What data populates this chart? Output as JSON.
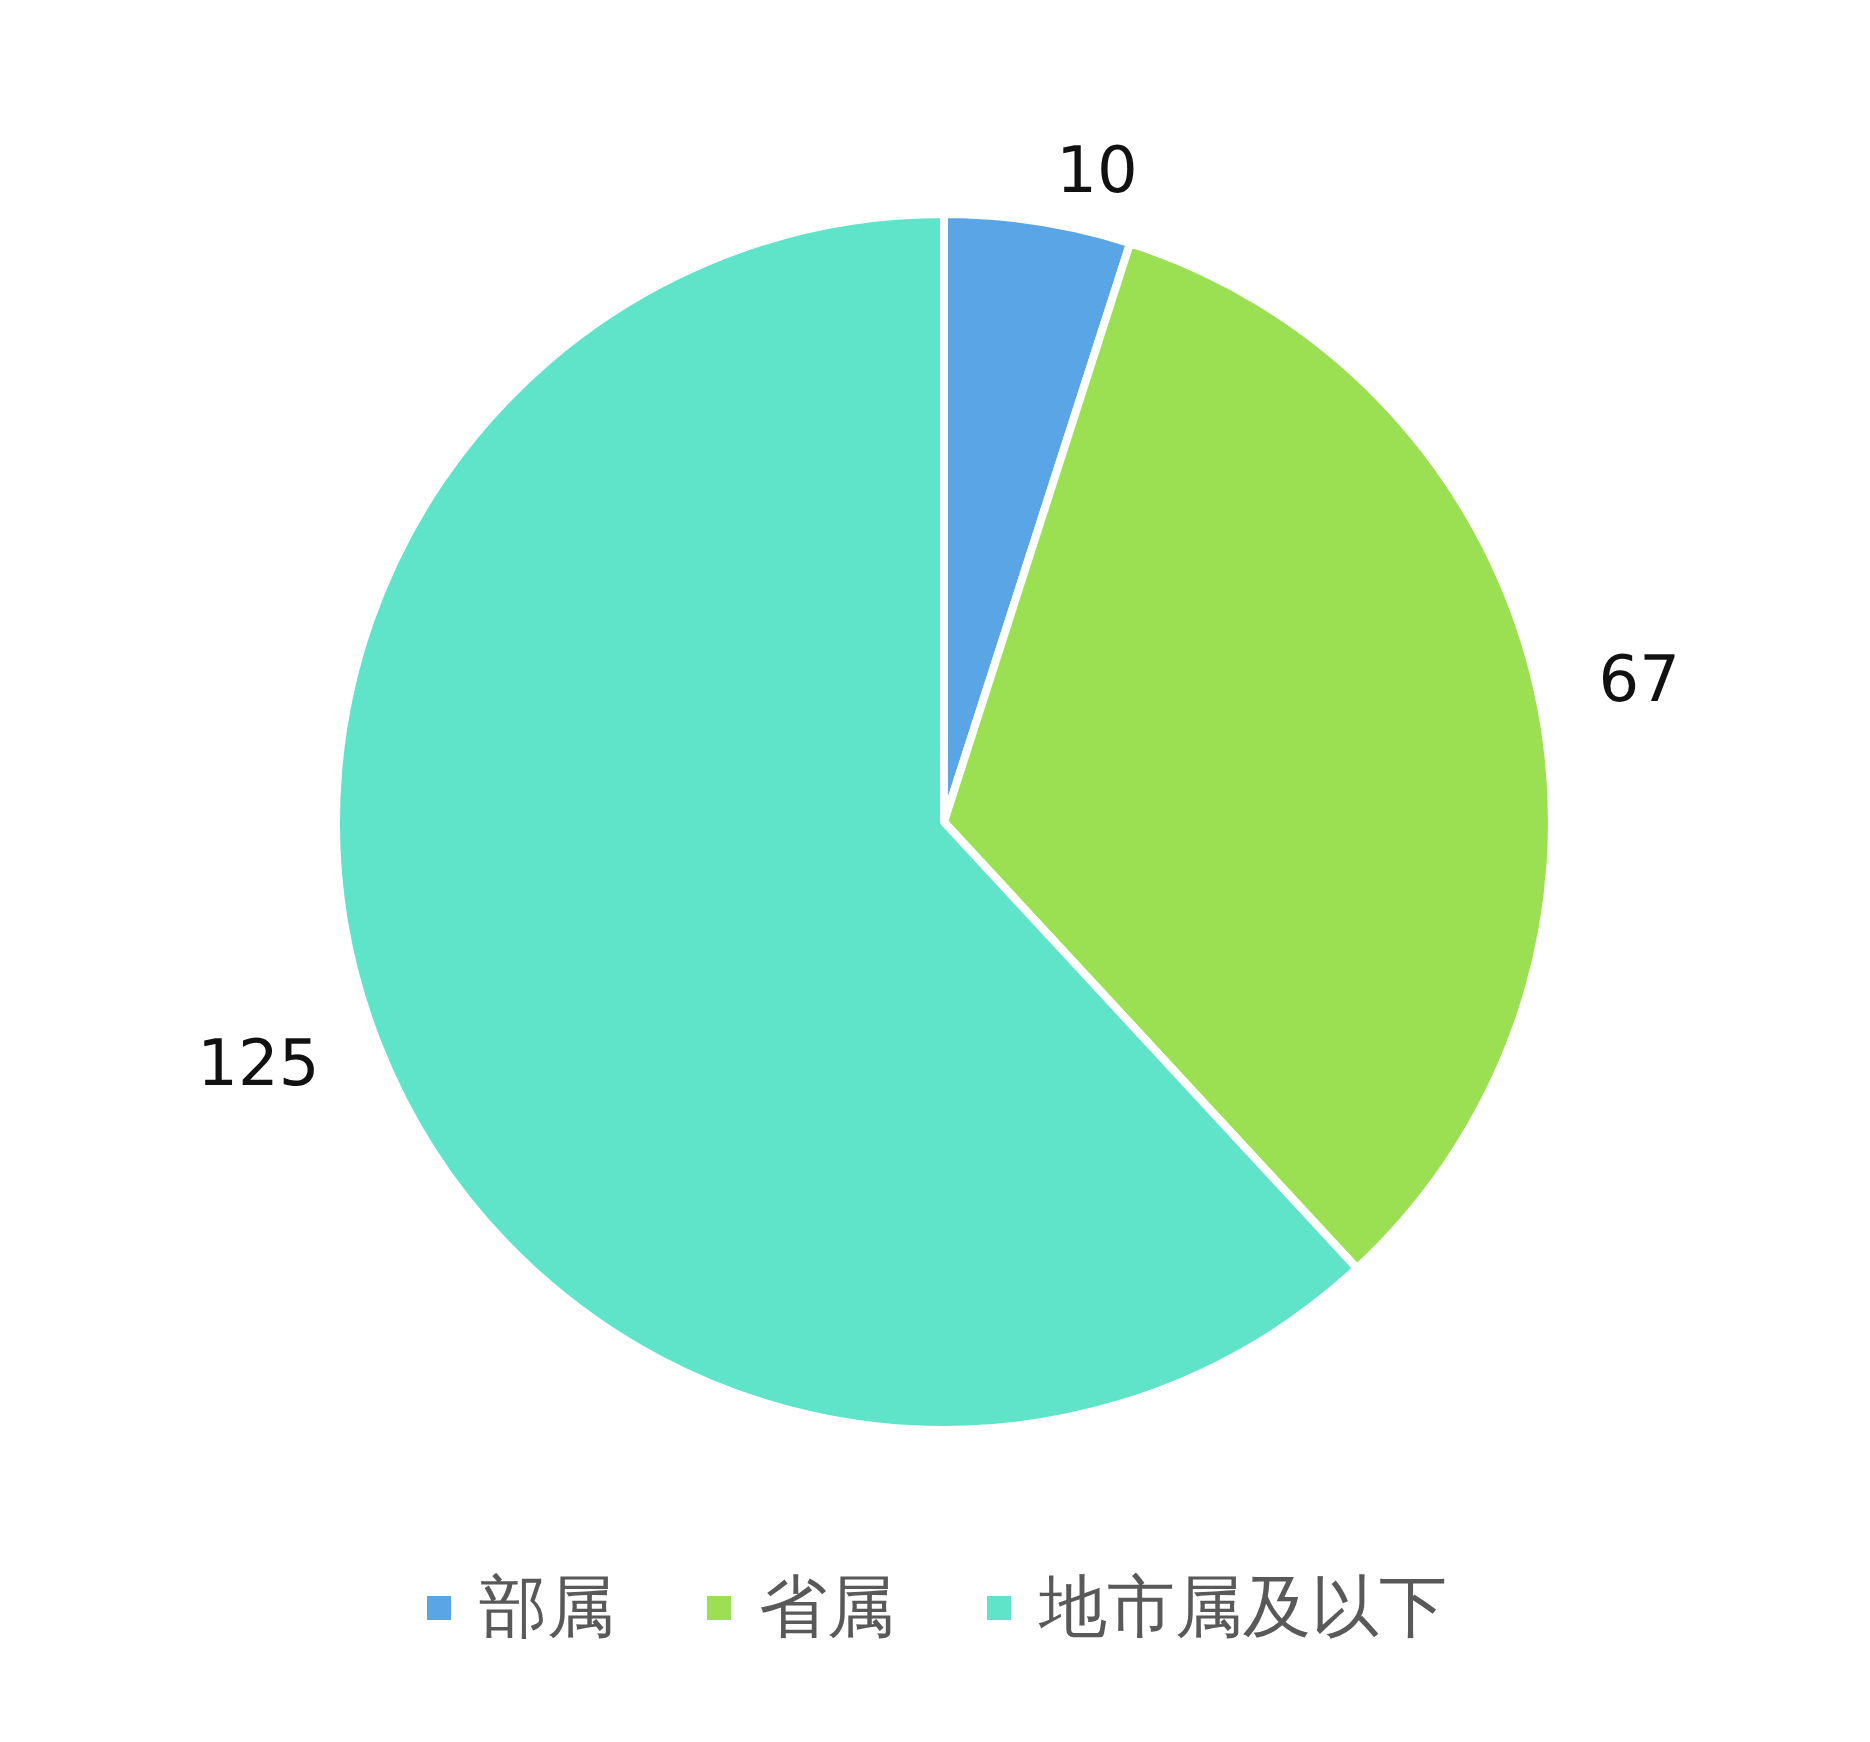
{
  "chart_data": {
    "type": "pie",
    "categories": [
      "部属",
      "省属",
      "地市属及以下"
    ],
    "values": [
      10,
      67,
      125
    ],
    "colors": [
      "#5aa5e6",
      "#9be052",
      "#5fe3c9"
    ],
    "data_labels": true,
    "legend": "bottom"
  }
}
